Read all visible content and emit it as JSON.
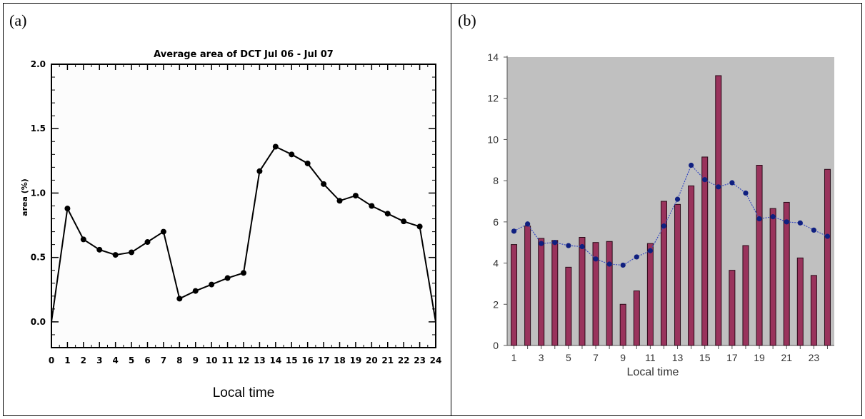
{
  "panels": {
    "a": {
      "label": "(a)"
    },
    "b": {
      "label": "(b)"
    }
  },
  "chart_data": [
    {
      "type": "line",
      "title": "Average area of DCT Jul 06 - Jul 07",
      "xlabel": "Local time",
      "ylabel": "area (%)",
      "xlim": [
        0,
        24
      ],
      "ylim": [
        -0.2,
        2.0
      ],
      "x": [
        0,
        1,
        2,
        3,
        4,
        5,
        6,
        7,
        8,
        9,
        10,
        11,
        12,
        13,
        14,
        15,
        16,
        17,
        18,
        19,
        20,
        21,
        22,
        23,
        24
      ],
      "xticks": [
        0,
        1,
        2,
        3,
        4,
        5,
        6,
        7,
        8,
        9,
        10,
        11,
        12,
        13,
        14,
        15,
        16,
        17,
        18,
        19,
        20,
        21,
        22,
        23,
        24
      ],
      "yticks": [
        "0.0",
        "0.5",
        "1.0",
        "1.5",
        "2.0"
      ],
      "series": [
        {
          "values": [
            0.0,
            0.88,
            0.64,
            0.56,
            0.52,
            0.54,
            0.62,
            0.7,
            0.18,
            0.24,
            0.29,
            0.34,
            0.38,
            1.17,
            1.36,
            1.3,
            1.23,
            1.07,
            0.94,
            0.98,
            0.9,
            0.84,
            0.78,
            0.74,
            0.0
          ]
        }
      ],
      "grid": false,
      "colors": {
        "line": "#000000"
      }
    },
    {
      "type": "bar",
      "xlabel": "Local time",
      "ylabel": "",
      "ylim": [
        0,
        14
      ],
      "categories": [
        1,
        2,
        3,
        4,
        5,
        6,
        7,
        8,
        9,
        10,
        11,
        12,
        13,
        14,
        15,
        16,
        17,
        18,
        19,
        20,
        21,
        22,
        23,
        24
      ],
      "xticks": [
        1,
        3,
        5,
        7,
        9,
        11,
        13,
        15,
        17,
        19,
        21,
        23
      ],
      "yticks": [
        0,
        2,
        4,
        6,
        8,
        10,
        12,
        14
      ],
      "series": [
        {
          "type": "bar",
          "values": [
            4.9,
            5.8,
            5.2,
            5.1,
            3.8,
            5.25,
            5.0,
            5.05,
            2.0,
            2.65,
            4.95,
            7.0,
            6.85,
            7.75,
            9.15,
            13.1,
            3.65,
            4.85,
            8.75,
            6.65,
            6.95,
            4.25,
            3.4,
            8.55
          ]
        },
        {
          "type": "line",
          "values": [
            5.55,
            5.9,
            4.95,
            5.0,
            4.85,
            4.8,
            4.2,
            3.95,
            3.9,
            4.3,
            4.6,
            5.8,
            7.1,
            8.75,
            8.05,
            7.7,
            7.9,
            7.4,
            6.15,
            6.25,
            6.0,
            5.95,
            5.6,
            5.3
          ]
        }
      ],
      "grid": false,
      "colors": {
        "plot_bg": "#c0c0c0",
        "bar": "#99335c",
        "bar_edge": "#2a0a18",
        "line": "#3a4cbf",
        "marker": "#102080"
      }
    }
  ]
}
